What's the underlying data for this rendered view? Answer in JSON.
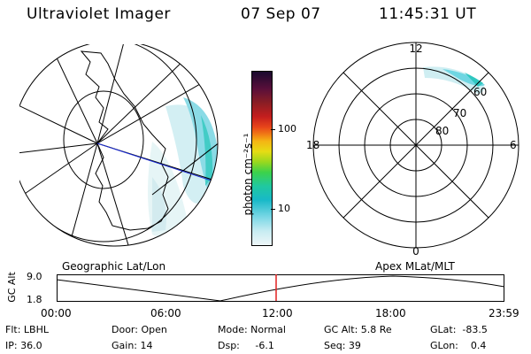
{
  "header": {
    "instrument": "Ultraviolet Imager",
    "date": "07 Sep 07",
    "time": "11:45:31 UT"
  },
  "colorbar": {
    "label": "photon cm⁻²s⁻¹",
    "ticks": [
      "100",
      "10"
    ],
    "colors": [
      "#1a0a2e",
      "#5a0f3a",
      "#8b1e24",
      "#c41e1e",
      "#e8461a",
      "#f07a15",
      "#f5b414",
      "#e6dc14",
      "#9ad81e",
      "#3cd24a",
      "#20c8a0",
      "#18b9c8",
      "#7cd8e6",
      "#c8ecf2",
      "#eef6f8"
    ]
  },
  "left_map": {
    "caption": "Geographic Lat/Lon"
  },
  "right_map": {
    "caption": "Apex MLat/MLT",
    "mlt_labels": [
      "12",
      "18",
      "6",
      "0"
    ],
    "lat_labels": [
      "60",
      "70",
      "80"
    ]
  },
  "timeline": {
    "y_axis_label": "GC Alt",
    "y_max": "9.0",
    "y_min": "1.8",
    "x_ticks": [
      "00:00",
      "06:00",
      "12:00",
      "18:00",
      "23:59"
    ],
    "current_time_color": "#e02020"
  },
  "info": {
    "filter": "Flt: LBHL",
    "ip": "IP: 36.0",
    "door": "Door: Open",
    "gain": "Gain: 14",
    "mode": "Mode: Normal",
    "dsp": "Dsp:     -6.1",
    "gc_alt": "GC Alt: 5.8 Re",
    "seq": "Seq: 39",
    "glat": "GLat:  -83.5",
    "glon": "GLon:    0.4"
  }
}
